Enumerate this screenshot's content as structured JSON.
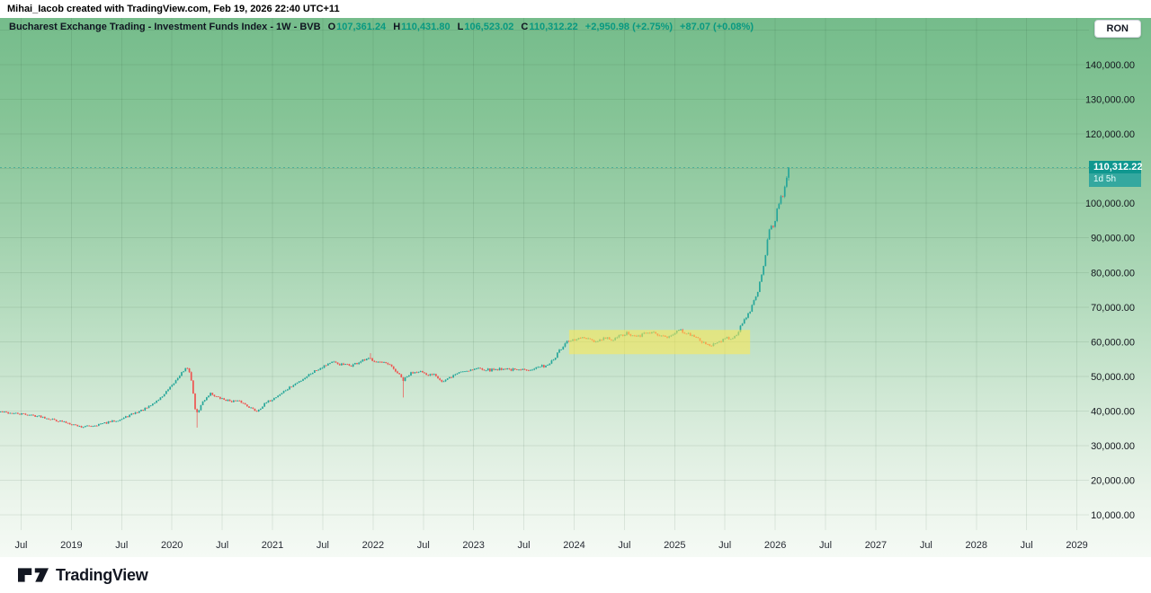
{
  "topbar": {
    "attribution": "Mihai_Iacob created with TradingView.com, Feb 19, 2026 22:40 UTC+11"
  },
  "currency_button": {
    "label": "RON"
  },
  "legend": {
    "symbol_title": "Bucharest Exchange Trading - Investment Funds Index - 1W - BVB",
    "ohlc": [
      {
        "key": "O",
        "value": "107,361.24"
      },
      {
        "key": "H",
        "value": "110,431.80"
      },
      {
        "key": "L",
        "value": "106,523.02"
      },
      {
        "key": "C",
        "value": "110,312.22"
      }
    ],
    "change": "+2,950.98 (+2.75%)",
    "change_session": "+87.07 (+0.08%)"
  },
  "price_label": {
    "price": "110,312.22",
    "countdown": "1d 5h"
  },
  "footer": {
    "logo_text": "TradingView"
  },
  "chart_data": {
    "type": "candlestick",
    "title": "Bucharest Exchange Trading - Investment Funds Index",
    "interval": "1W",
    "exchange": "BVB",
    "currency": "RON",
    "seed": 42,
    "colors": {
      "up": "#26a69a",
      "down": "#ef5350",
      "highlight": "#ffe94f",
      "price_line": "#0d968f"
    },
    "xlim": [
      2018.29,
      2029.12
    ],
    "ylim": [
      5600,
      153500
    ],
    "t_start": 2018.295,
    "t_end": 2026.136,
    "weeks_per_year": 52.18,
    "last": {
      "open": 107361.24,
      "high": 110431.8,
      "low": 106523.02,
      "close": 110312.22
    },
    "prev_close": 107361.24,
    "highlight_box": {
      "t_start": 2023.95,
      "t_end": 2025.75,
      "price_low": 56400,
      "price_high": 63400
    },
    "price_ticks": [
      {
        "price": 150000,
        "label": ""
      },
      {
        "price": 140000,
        "label": "140,000.00"
      },
      {
        "price": 130000,
        "label": "130,000.00"
      },
      {
        "price": 120000,
        "label": "120,000.00"
      },
      {
        "price": 110000,
        "label": ""
      },
      {
        "price": 100000,
        "label": "100,000.00"
      },
      {
        "price": 90000,
        "label": "90,000.00"
      },
      {
        "price": 80000,
        "label": "80,000.00"
      },
      {
        "price": 70000,
        "label": "70,000.00"
      },
      {
        "price": 60000,
        "label": "60,000.00"
      },
      {
        "price": 50000,
        "label": "50,000.00"
      },
      {
        "price": 40000,
        "label": "40,000.00"
      },
      {
        "price": 30000,
        "label": "30,000.00"
      },
      {
        "price": 20000,
        "label": "20,000.00"
      },
      {
        "price": 10000,
        "label": "10,000.00"
      }
    ],
    "time_ticks": [
      {
        "t": 2018.5,
        "label": "Jul"
      },
      {
        "t": 2019.0,
        "label": "2019"
      },
      {
        "t": 2019.5,
        "label": "Jul"
      },
      {
        "t": 2020.0,
        "label": "2020"
      },
      {
        "t": 2020.5,
        "label": "Jul"
      },
      {
        "t": 2021.0,
        "label": "2021"
      },
      {
        "t": 2021.5,
        "label": "Jul"
      },
      {
        "t": 2022.0,
        "label": "2022"
      },
      {
        "t": 2022.5,
        "label": "Jul"
      },
      {
        "t": 2023.0,
        "label": "2023"
      },
      {
        "t": 2023.5,
        "label": "Jul"
      },
      {
        "t": 2024.0,
        "label": "2024"
      },
      {
        "t": 2024.5,
        "label": "Jul"
      },
      {
        "t": 2025.0,
        "label": "2025"
      },
      {
        "t": 2025.5,
        "label": "Jul"
      },
      {
        "t": 2026.0,
        "label": "2026"
      },
      {
        "t": 2026.5,
        "label": "Jul"
      },
      {
        "t": 2027.0,
        "label": "2027"
      },
      {
        "t": 2027.5,
        "label": "Jul"
      },
      {
        "t": 2028.0,
        "label": "2028"
      },
      {
        "t": 2028.5,
        "label": "Jul"
      },
      {
        "t": 2029.0,
        "label": "2029"
      }
    ],
    "waypoints": [
      [
        2018.29,
        39800
      ],
      [
        2018.42,
        39300
      ],
      [
        2018.55,
        39000
      ],
      [
        2018.7,
        38400
      ],
      [
        2018.85,
        37300
      ],
      [
        2019.0,
        36300
      ],
      [
        2019.1,
        35400
      ],
      [
        2019.22,
        35800
      ],
      [
        2019.35,
        36600
      ],
      [
        2019.5,
        37700
      ],
      [
        2019.62,
        39300
      ],
      [
        2019.75,
        40800
      ],
      [
        2019.88,
        43600
      ],
      [
        2020.0,
        47200
      ],
      [
        2020.08,
        50600
      ],
      [
        2020.14,
        52300
      ],
      [
        2020.18,
        51400
      ],
      [
        2020.24,
        38800
      ],
      [
        2020.31,
        42800
      ],
      [
        2020.38,
        45200
      ],
      [
        2020.46,
        43800
      ],
      [
        2020.56,
        43000
      ],
      [
        2020.68,
        42700
      ],
      [
        2020.78,
        41000
      ],
      [
        2020.84,
        39900
      ],
      [
        2020.93,
        42200
      ],
      [
        2021.02,
        43800
      ],
      [
        2021.13,
        46000
      ],
      [
        2021.26,
        48400
      ],
      [
        2021.4,
        51300
      ],
      [
        2021.5,
        52900
      ],
      [
        2021.58,
        54100
      ],
      [
        2021.68,
        53400
      ],
      [
        2021.78,
        53100
      ],
      [
        2021.88,
        54300
      ],
      [
        2021.97,
        55100
      ],
      [
        2022.06,
        54100
      ],
      [
        2022.16,
        53300
      ],
      [
        2022.25,
        50800
      ],
      [
        2022.3,
        48800
      ],
      [
        2022.38,
        51000
      ],
      [
        2022.46,
        51700
      ],
      [
        2022.53,
        50100
      ],
      [
        2022.61,
        50900
      ],
      [
        2022.69,
        48300
      ],
      [
        2022.77,
        49700
      ],
      [
        2022.86,
        51300
      ],
      [
        2022.96,
        51900
      ],
      [
        2023.06,
        52400
      ],
      [
        2023.16,
        51800
      ],
      [
        2023.3,
        52300
      ],
      [
        2023.44,
        51700
      ],
      [
        2023.55,
        52100
      ],
      [
        2023.66,
        52700
      ],
      [
        2023.73,
        53300
      ],
      [
        2023.79,
        54600
      ],
      [
        2023.86,
        57600
      ],
      [
        2023.93,
        59800
      ],
      [
        2024.01,
        60600
      ],
      [
        2024.09,
        61200
      ],
      [
        2024.16,
        60300
      ],
      [
        2024.23,
        59900
      ],
      [
        2024.31,
        61100
      ],
      [
        2024.39,
        60400
      ],
      [
        2024.46,
        61800
      ],
      [
        2024.53,
        62400
      ],
      [
        2024.61,
        61300
      ],
      [
        2024.69,
        62100
      ],
      [
        2024.76,
        62900
      ],
      [
        2024.83,
        61900
      ],
      [
        2024.91,
        61400
      ],
      [
        2024.98,
        62400
      ],
      [
        2025.06,
        63300
      ],
      [
        2025.13,
        62400
      ],
      [
        2025.21,
        61000
      ],
      [
        2025.29,
        59800
      ],
      [
        2025.36,
        58900
      ],
      [
        2025.43,
        59900
      ],
      [
        2025.51,
        60900
      ],
      [
        2025.57,
        61300
      ],
      [
        2025.62,
        62300
      ],
      [
        2025.68,
        65500
      ],
      [
        2025.73,
        68000
      ],
      [
        2025.78,
        71000
      ],
      [
        2025.83,
        75000
      ],
      [
        2025.87,
        80000
      ],
      [
        2025.9,
        85000
      ],
      [
        2025.93,
        90500
      ],
      [
        2025.95,
        94000
      ],
      [
        2025.97,
        92000
      ],
      [
        2025.99,
        93500
      ],
      [
        2026.01,
        96500
      ],
      [
        2026.03,
        99500
      ],
      [
        2026.06,
        103000
      ],
      [
        2026.08,
        101500
      ],
      [
        2026.1,
        105500
      ],
      [
        2026.12,
        108000
      ],
      [
        2026.136,
        110312
      ]
    ],
    "wick_events": [
      {
        "t": 2020.245,
        "low": 35200
      },
      {
        "t": 2021.97,
        "high": 56700
      },
      {
        "t": 2022.305,
        "low": 43900
      }
    ]
  }
}
